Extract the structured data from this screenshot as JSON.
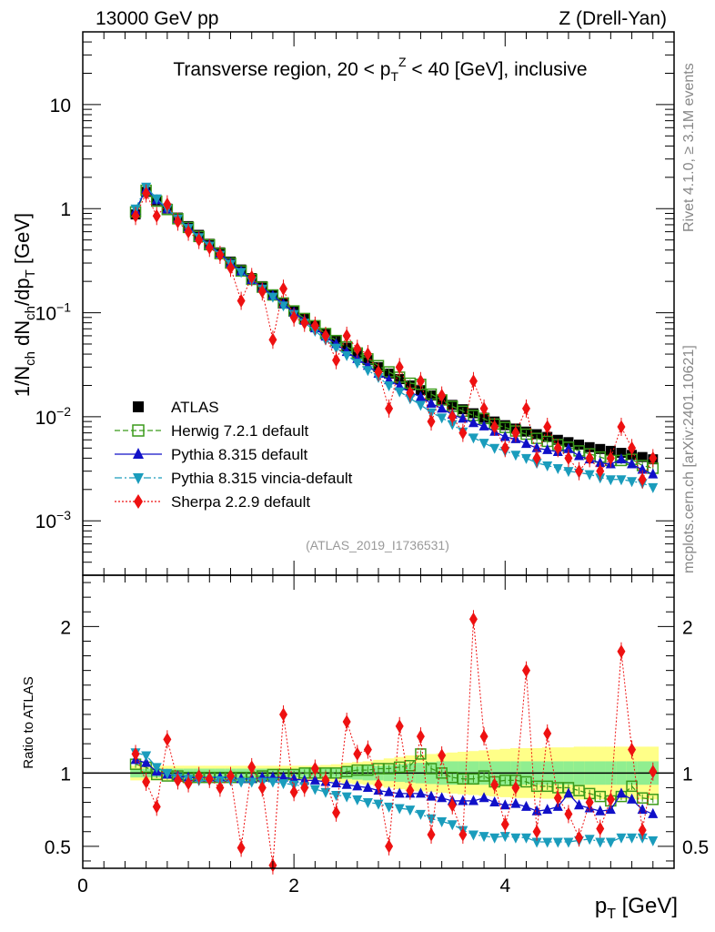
{
  "header": {
    "left": "13000 GeV pp",
    "right": "Z (Drell-Yan)"
  },
  "side": {
    "rivet": "Rivet 4.1.0, ≥ 3.1M events",
    "site": "mcplots.cern.ch [arXiv:2401.10621]"
  },
  "analysis_id": "(ATLAS_2019_I1736531)",
  "colors": {
    "atlas": "#000000",
    "herwig": "#3a9a1a",
    "pythia": "#1010c8",
    "vincia": "#1a9cbc",
    "sherpa": "#ee1111",
    "band_inner": "#90ee90",
    "band_outer": "#ffff88"
  },
  "chart_data": [
    {
      "type": "scatter",
      "panel": "main",
      "title": "Transverse region, 20 < p_T^Z < 40 [GeV], inclusive",
      "ylabel": "1/N_ch dN_ch/dp_T [GeV]",
      "xlabel": "",
      "yscale": "log",
      "xlim": [
        0,
        5.6
      ],
      "ylim": [
        0.0003,
        50
      ],
      "ytick_labels": [
        "10",
        "1",
        "10^-1",
        "10^-2",
        "10^-3"
      ],
      "legend": [
        "ATLAS",
        "Herwig 7.2.1 default",
        "Pythia 8.315 default",
        "Pythia 8.315 vincia-default",
        "Sherpa 2.2.9 default"
      ],
      "legend_position": "lower-left",
      "x": [
        0.5,
        0.6,
        0.7,
        0.8,
        0.9,
        1.0,
        1.1,
        1.2,
        1.3,
        1.4,
        1.5,
        1.6,
        1.7,
        1.8,
        1.9,
        2.0,
        2.1,
        2.2,
        2.3,
        2.4,
        2.5,
        2.6,
        2.7,
        2.8,
        2.9,
        3.0,
        3.1,
        3.2,
        3.3,
        3.4,
        3.5,
        3.6,
        3.7,
        3.8,
        3.9,
        4.0,
        4.1,
        4.2,
        4.3,
        4.4,
        4.5,
        4.6,
        4.7,
        4.8,
        4.9,
        5.0,
        5.1,
        5.2,
        5.3,
        5.4
      ],
      "series": [
        {
          "name": "ATLAS",
          "values": [
            0.88,
            1.45,
            1.2,
            1.0,
            0.82,
            0.68,
            0.56,
            0.46,
            0.38,
            0.31,
            0.26,
            0.215,
            0.18,
            0.15,
            0.125,
            0.105,
            0.088,
            0.075,
            0.063,
            0.054,
            0.046,
            0.04,
            0.035,
            0.03,
            0.026,
            0.023,
            0.02,
            0.018,
            0.016,
            0.0145,
            0.013,
            0.0118,
            0.0108,
            0.0098,
            0.009,
            0.0083,
            0.0077,
            0.0072,
            0.0068,
            0.0064,
            0.006,
            0.0057,
            0.0054,
            0.0051,
            0.0049,
            0.0047,
            0.0045,
            0.0043,
            0.0041,
            0.0039
          ]
        },
        {
          "name": "Herwig 7.2.1 default",
          "values": [
            0.93,
            1.5,
            1.18,
            0.98,
            0.8,
            0.66,
            0.54,
            0.45,
            0.37,
            0.3,
            0.252,
            0.209,
            0.176,
            0.148,
            0.124,
            0.104,
            0.088,
            0.075,
            0.063,
            0.054,
            0.047,
            0.041,
            0.036,
            0.031,
            0.027,
            0.024,
            0.021,
            0.0205,
            0.0165,
            0.0145,
            0.0126,
            0.0113,
            0.0103,
            0.0096,
            0.0085,
            0.0079,
            0.0073,
            0.0068,
            0.0062,
            0.0058,
            0.0054,
            0.0051,
            0.0047,
            0.0044,
            0.0041,
            0.0038,
            0.0038,
            0.0039,
            0.0034,
            0.0032
          ]
        },
        {
          "name": "Pythia 8.315 default",
          "values": [
            0.96,
            1.55,
            1.21,
            0.99,
            0.8,
            0.66,
            0.54,
            0.45,
            0.37,
            0.3,
            0.25,
            0.207,
            0.174,
            0.146,
            0.121,
            0.101,
            0.084,
            0.071,
            0.059,
            0.05,
            0.042,
            0.036,
            0.031,
            0.026,
            0.0225,
            0.0197,
            0.0172,
            0.0155,
            0.0134,
            0.012,
            0.0105,
            0.0096,
            0.0087,
            0.0081,
            0.0072,
            0.0064,
            0.0061,
            0.0055,
            0.005,
            0.0048,
            0.0046,
            0.0049,
            0.0042,
            0.0039,
            0.0036,
            0.0035,
            0.0039,
            0.0035,
            0.0031,
            0.0028
          ]
        },
        {
          "name": "Pythia 8.315 vincia-default",
          "values": [
            1.0,
            1.62,
            1.25,
            1.0,
            0.8,
            0.65,
            0.53,
            0.44,
            0.36,
            0.295,
            0.246,
            0.203,
            0.17,
            0.142,
            0.117,
            0.097,
            0.08,
            0.067,
            0.055,
            0.046,
            0.039,
            0.033,
            0.028,
            0.024,
            0.02,
            0.0175,
            0.015,
            0.013,
            0.011,
            0.0098,
            0.0085,
            0.0072,
            0.0063,
            0.0056,
            0.005,
            0.0047,
            0.0043,
            0.004,
            0.0036,
            0.0034,
            0.0032,
            0.003,
            0.0029,
            0.0028,
            0.0026,
            0.0025,
            0.0025,
            0.0024,
            0.0023,
            0.0021
          ]
        },
        {
          "name": "Sherpa 2.2.9 default",
          "values": [
            0.85,
            1.4,
            0.85,
            1.1,
            0.75,
            0.6,
            0.5,
            0.42,
            0.36,
            0.27,
            0.13,
            0.22,
            0.16,
            0.055,
            0.17,
            0.09,
            0.08,
            0.075,
            0.06,
            0.035,
            0.06,
            0.045,
            0.04,
            0.027,
            0.012,
            0.03,
            0.017,
            0.022,
            0.009,
            0.016,
            0.01,
            0.007,
            0.022,
            0.012,
            0.008,
            0.005,
            0.007,
            0.012,
            0.004,
            0.008,
            0.005,
            0.004,
            0.003,
            0.004,
            0.003,
            0.004,
            0.008,
            0.005,
            0.0025,
            0.004
          ]
        }
      ]
    },
    {
      "type": "scatter",
      "panel": "ratio",
      "ylabel": "Ratio to ATLAS",
      "xlabel": "p_T [GeV]",
      "xlim": [
        0,
        5.6
      ],
      "ylim": [
        0.35,
        2.35
      ],
      "xtick_labels": [
        "0",
        "2",
        "4"
      ],
      "ytick_labels": [
        "0.5",
        "1",
        "2"
      ],
      "x": [
        0.5,
        0.6,
        0.7,
        0.8,
        0.9,
        1.0,
        1.1,
        1.2,
        1.3,
        1.4,
        1.5,
        1.6,
        1.7,
        1.8,
        1.9,
        2.0,
        2.1,
        2.2,
        2.3,
        2.4,
        2.5,
        2.6,
        2.7,
        2.8,
        2.9,
        3.0,
        3.1,
        3.2,
        3.3,
        3.4,
        3.5,
        3.6,
        3.7,
        3.8,
        3.9,
        4.0,
        4.1,
        4.2,
        4.3,
        4.4,
        4.5,
        4.6,
        4.7,
        4.8,
        4.9,
        5.0,
        5.1,
        5.2,
        5.3,
        5.4
      ],
      "band_inner_halfwidth": [
        0.03,
        0.03,
        0.03,
        0.03,
        0.03,
        0.03,
        0.03,
        0.03,
        0.03,
        0.03,
        0.03,
        0.03,
        0.03,
        0.03,
        0.03,
        0.03,
        0.03,
        0.03,
        0.03,
        0.035,
        0.04,
        0.045,
        0.05,
        0.05,
        0.055,
        0.06,
        0.065,
        0.07,
        0.075,
        0.08,
        0.08,
        0.08,
        0.08,
        0.08,
        0.08,
        0.08,
        0.08,
        0.08,
        0.08,
        0.08,
        0.08,
        0.08,
        0.08,
        0.08,
        0.08,
        0.08,
        0.08,
        0.08,
        0.08,
        0.08
      ],
      "band_outer_halfwidth": [
        0.05,
        0.05,
        0.05,
        0.05,
        0.05,
        0.05,
        0.05,
        0.05,
        0.05,
        0.05,
        0.05,
        0.05,
        0.05,
        0.05,
        0.05,
        0.05,
        0.05,
        0.05,
        0.055,
        0.06,
        0.07,
        0.075,
        0.08,
        0.09,
        0.1,
        0.11,
        0.12,
        0.125,
        0.13,
        0.135,
        0.14,
        0.145,
        0.15,
        0.155,
        0.16,
        0.165,
        0.17,
        0.17,
        0.17,
        0.175,
        0.175,
        0.175,
        0.18,
        0.18,
        0.18,
        0.18,
        0.18,
        0.18,
        0.18,
        0.18
      ],
      "series": [
        {
          "name": "Herwig 7.2.1 default",
          "values": [
            1.06,
            1.04,
            0.99,
            0.98,
            0.98,
            0.97,
            0.97,
            0.97,
            0.97,
            0.97,
            0.97,
            0.97,
            0.98,
            0.99,
            0.99,
            0.99,
            1.0,
            1.0,
            1.0,
            1.0,
            1.01,
            1.02,
            1.02,
            1.03,
            1.03,
            1.04,
            1.05,
            1.13,
            1.03,
            1.0,
            0.97,
            0.96,
            0.96,
            0.98,
            0.94,
            0.95,
            0.95,
            0.94,
            0.91,
            0.91,
            0.9,
            0.9,
            0.88,
            0.86,
            0.84,
            0.81,
            0.84,
            0.91,
            0.83,
            0.82
          ]
        },
        {
          "name": "Pythia 8.315 default",
          "values": [
            1.09,
            1.07,
            1.01,
            0.99,
            0.98,
            0.97,
            0.97,
            0.97,
            0.97,
            0.97,
            0.96,
            0.96,
            0.97,
            0.97,
            0.97,
            0.96,
            0.95,
            0.95,
            0.94,
            0.93,
            0.92,
            0.91,
            0.9,
            0.88,
            0.87,
            0.86,
            0.86,
            0.86,
            0.84,
            0.83,
            0.81,
            0.81,
            0.81,
            0.83,
            0.8,
            0.78,
            0.79,
            0.77,
            0.74,
            0.75,
            0.77,
            0.86,
            0.78,
            0.76,
            0.74,
            0.75,
            0.86,
            0.82,
            0.75,
            0.72
          ]
        },
        {
          "name": "Pythia 8.315 vincia-default",
          "values": [
            1.14,
            1.12,
            1.04,
            1.0,
            0.97,
            0.96,
            0.95,
            0.95,
            0.95,
            0.95,
            0.94,
            0.94,
            0.94,
            0.94,
            0.93,
            0.92,
            0.91,
            0.89,
            0.87,
            0.85,
            0.84,
            0.82,
            0.8,
            0.79,
            0.77,
            0.76,
            0.75,
            0.72,
            0.69,
            0.67,
            0.65,
            0.61,
            0.58,
            0.57,
            0.56,
            0.57,
            0.56,
            0.56,
            0.53,
            0.53,
            0.53,
            0.53,
            0.54,
            0.55,
            0.53,
            0.53,
            0.56,
            0.56,
            0.56,
            0.54
          ]
        },
        {
          "name": "Sherpa 2.2.9 default",
          "values": [
            1.13,
            0.94,
            0.77,
            1.23,
            0.95,
            0.93,
            0.98,
            0.96,
            0.9,
            0.98,
            0.49,
            1.04,
            0.9,
            0.37,
            1.4,
            0.87,
            0.9,
            1.03,
            0.95,
            0.73,
            1.35,
            1.13,
            1.16,
            0.92,
            0.5,
            1.32,
            0.88,
            1.25,
            0.58,
            1.12,
            0.78,
            0.58,
            2.05,
            1.25,
            0.92,
            0.65,
            0.9,
            1.7,
            0.6,
            1.27,
            0.83,
            0.72,
            0.56,
            0.8,
            0.62,
            0.82,
            1.83,
            1.16,
            0.61,
            1.01
          ]
        }
      ]
    }
  ]
}
